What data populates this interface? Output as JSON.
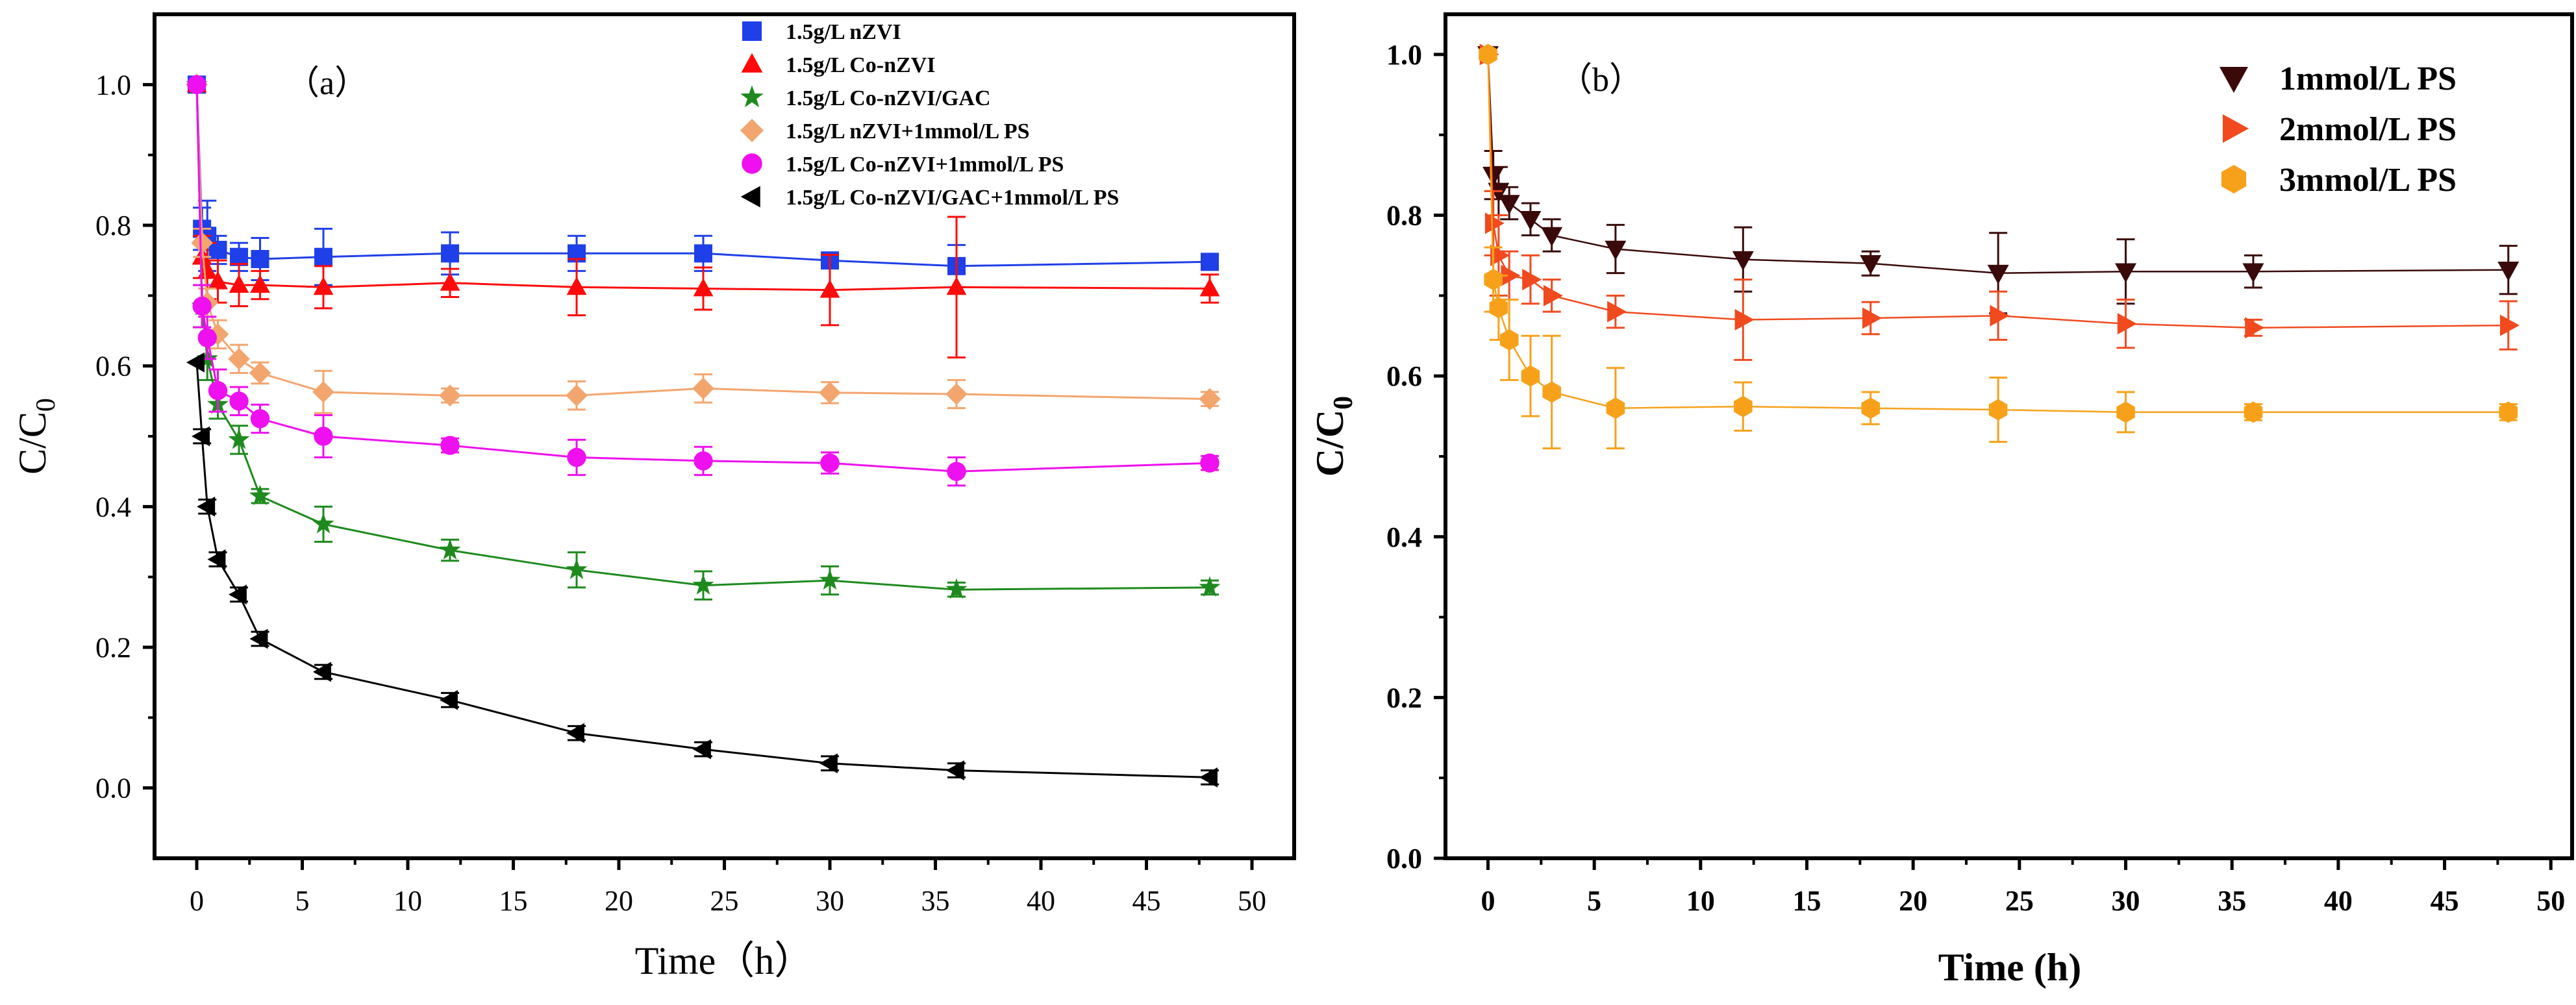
{
  "chart_data": [
    {
      "type": "line",
      "panel_label": "（a）",
      "xlabel": "Time（h）",
      "ylabel": "C/C",
      "ylabel_sub": "0",
      "xlim": [
        -2,
        52
      ],
      "ylim": [
        -0.1,
        1.1
      ],
      "xticks": [
        0,
        5,
        10,
        15,
        20,
        25,
        30,
        35,
        40,
        45,
        50
      ],
      "yticks": [
        0.0,
        0.2,
        0.4,
        0.6,
        0.8,
        1.0
      ],
      "ytick_labels": [
        "0.0",
        "0.2",
        "0.4",
        "0.6",
        "0.8",
        "1.0"
      ],
      "legend_position": "top-right",
      "series": [
        {
          "name": "1.5g/L nZVI",
          "color": "#1f3fe8",
          "marker": "square",
          "x": [
            0,
            0.25,
            0.5,
            1,
            2,
            3,
            6,
            12,
            18,
            24,
            30,
            36,
            48
          ],
          "y": [
            1.0,
            0.795,
            0.785,
            0.765,
            0.755,
            0.752,
            0.755,
            0.76,
            0.76,
            0.76,
            0.75,
            0.742,
            0.748
          ],
          "err": [
            0,
            0.03,
            0.05,
            0.02,
            0.02,
            0.03,
            0.04,
            0.03,
            0.025,
            0.025,
            0.01,
            0.03,
            0.01
          ]
        },
        {
          "name": "1.5g/L Co-nZVI",
          "color": "#ff0a0a",
          "marker": "triangle-up",
          "x": [
            0,
            0.25,
            0.5,
            1,
            2,
            3,
            6,
            12,
            18,
            24,
            30,
            36,
            48
          ],
          "y": [
            1.0,
            0.755,
            0.735,
            0.72,
            0.715,
            0.715,
            0.712,
            0.718,
            0.712,
            0.71,
            0.708,
            0.712,
            0.71
          ],
          "err": [
            0,
            0.03,
            0.04,
            0.03,
            0.03,
            0.02,
            0.03,
            0.02,
            0.04,
            0.03,
            0.05,
            0.1,
            0.02
          ]
        },
        {
          "name": "1.5g/L Co-nZVI/GAC",
          "color": "#1e8a1e",
          "marker": "star",
          "x": [
            0,
            0.25,
            0.5,
            1,
            2,
            3,
            6,
            12,
            18,
            24,
            30,
            36,
            48
          ],
          "y": [
            1.0,
            0.685,
            0.61,
            0.545,
            0.495,
            0.415,
            0.375,
            0.338,
            0.31,
            0.288,
            0.295,
            0.282,
            0.285
          ],
          "err": [
            0,
            0.03,
            0.03,
            0.02,
            0.02,
            0.01,
            0.025,
            0.015,
            0.025,
            0.02,
            0.02,
            0.01,
            0.01
          ]
        },
        {
          "name": "1.5g/L nZVI+1mmol/L PS",
          "color": "#f3a56e",
          "marker": "diamond",
          "x": [
            0,
            0.25,
            0.5,
            1,
            2,
            3,
            6,
            12,
            18,
            24,
            30,
            36,
            48
          ],
          "y": [
            1.0,
            0.775,
            0.69,
            0.645,
            0.61,
            0.59,
            0.563,
            0.558,
            0.558,
            0.568,
            0.562,
            0.56,
            0.553
          ],
          "err": [
            0,
            0.02,
            0.02,
            0.02,
            0.02,
            0.015,
            0.03,
            0.01,
            0.02,
            0.02,
            0.015,
            0.02,
            0.01
          ]
        },
        {
          "name": "1.5g/L Co-nZVI+1mmol/L PS",
          "color": "#ee10ee",
          "marker": "circle",
          "x": [
            0,
            0.25,
            0.5,
            1,
            2,
            3,
            6,
            12,
            18,
            24,
            30,
            36,
            48
          ],
          "y": [
            1.0,
            0.685,
            0.64,
            0.565,
            0.55,
            0.525,
            0.5,
            0.487,
            0.47,
            0.465,
            0.462,
            0.45,
            0.462
          ],
          "err": [
            0,
            0.03,
            0.03,
            0.03,
            0.02,
            0.02,
            0.03,
            0.01,
            0.025,
            0.02,
            0.015,
            0.02,
            0.01
          ]
        },
        {
          "name": "1.5g/L Co-nZVI/GAC+1mmol/L PS",
          "color": "#000000",
          "marker": "triangle-left",
          "x": [
            0,
            0.25,
            0.5,
            1,
            2,
            3,
            6,
            12,
            18,
            24,
            30,
            36,
            48
          ],
          "y": [
            0.605,
            0.5,
            0.4,
            0.325,
            0.275,
            0.212,
            0.165,
            0.125,
            0.078,
            0.055,
            0.035,
            0.025,
            0.015
          ],
          "err": [
            0,
            0.01,
            0.01,
            0.01,
            0.01,
            0.01,
            0.01,
            0.01,
            0.01,
            0.01,
            0.01,
            0.01,
            0.01
          ]
        }
      ]
    },
    {
      "type": "line",
      "panel_label": "（b）",
      "xlabel": "Time (h)",
      "ylabel": "C/C",
      "ylabel_sub": "0",
      "xlim": [
        -2,
        51
      ],
      "ylim": [
        0.0,
        1.05
      ],
      "xticks": [
        0,
        5,
        10,
        15,
        20,
        25,
        30,
        35,
        40,
        45,
        50
      ],
      "yticks": [
        0.0,
        0.2,
        0.4,
        0.6,
        0.8,
        1.0
      ],
      "ytick_labels": [
        "0.0",
        "0.2",
        "0.4",
        "0.6",
        "0.8",
        "1.0"
      ],
      "legend_position": "top-right",
      "series": [
        {
          "name": "1mmol/L PS",
          "color": "#3a0a0a",
          "marker": "triangle-down",
          "x": [
            0,
            0.25,
            0.5,
            1,
            2,
            3,
            6,
            12,
            18,
            24,
            30,
            36,
            48
          ],
          "y": [
            1.0,
            0.85,
            0.83,
            0.815,
            0.795,
            0.775,
            0.758,
            0.745,
            0.74,
            0.728,
            0.73,
            0.73,
            0.732
          ],
          "err": [
            0,
            0.03,
            0.03,
            0.02,
            0.02,
            0.02,
            0.03,
            0.04,
            0.015,
            0.05,
            0.04,
            0.02,
            0.03
          ]
        },
        {
          "name": "2mmol/L PS",
          "color": "#f04a1e",
          "marker": "triangle-right",
          "x": [
            0,
            0.25,
            0.5,
            1,
            2,
            3,
            6,
            12,
            18,
            24,
            30,
            36,
            48
          ],
          "y": [
            1.0,
            0.79,
            0.75,
            0.725,
            0.72,
            0.7,
            0.68,
            0.67,
            0.672,
            0.675,
            0.665,
            0.66,
            0.663
          ],
          "err": [
            0,
            0.04,
            0.05,
            0.03,
            0.03,
            0.02,
            0.02,
            0.05,
            0.02,
            0.03,
            0.03,
            0.01,
            0.03
          ]
        },
        {
          "name": "3mmol/L PS",
          "color": "#f7a11a",
          "marker": "hexagon",
          "x": [
            0,
            0.25,
            0.5,
            1,
            2,
            3,
            6,
            12,
            18,
            24,
            30,
            36,
            48
          ],
          "y": [
            1.0,
            0.72,
            0.685,
            0.645,
            0.6,
            0.58,
            0.56,
            0.562,
            0.56,
            0.558,
            0.555,
            0.555,
            0.555
          ],
          "err": [
            0,
            0.04,
            0.04,
            0.05,
            0.05,
            0.07,
            0.05,
            0.03,
            0.02,
            0.04,
            0.025,
            0.01,
            0.01
          ]
        }
      ]
    }
  ]
}
